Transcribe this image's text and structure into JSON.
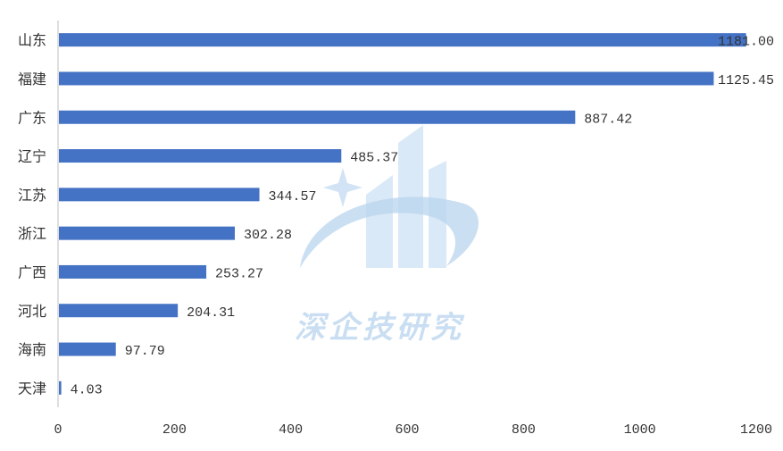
{
  "chart_data": {
    "type": "bar",
    "orientation": "horizontal",
    "categories": [
      "山东",
      "福建",
      "广东",
      "辽宁",
      "江苏",
      "浙江",
      "广西",
      "河北",
      "海南",
      "天津"
    ],
    "values": [
      1181.0,
      1125.45,
      887.42,
      485.37,
      344.57,
      302.28,
      253.27,
      204.31,
      97.79,
      4.03
    ],
    "value_labels": [
      "1181.00",
      "1125.45",
      "887.42",
      "485.37",
      "344.57",
      "302.28",
      "253.27",
      "204.31",
      "97.79",
      "4.03"
    ],
    "title": "",
    "xlabel": "",
    "ylabel": "",
    "xlim": [
      0,
      1200
    ],
    "x_ticks": [
      0,
      200,
      400,
      600,
      800,
      1000,
      1200
    ],
    "grid": false,
    "bar_color": "#4472c4"
  },
  "watermark": {
    "text": "深企技研究",
    "color": "#c9def2"
  }
}
